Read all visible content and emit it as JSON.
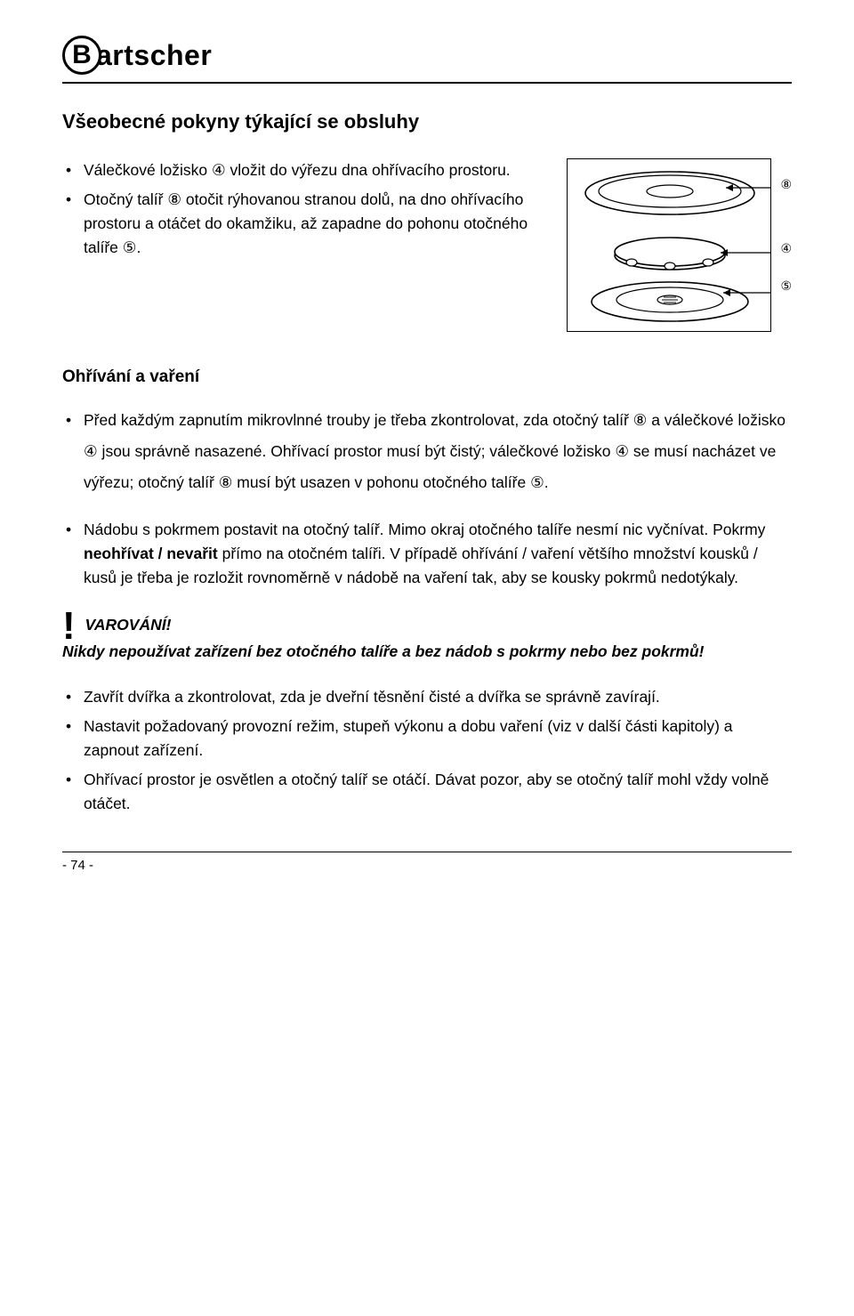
{
  "logo": {
    "b": "B",
    "rest": "artscher"
  },
  "heading": "Všeobecné pokyny týkající se obsluhy",
  "topList": [
    "Válečkové ložisko ④ vložit do výřezu dna ohřívacího prostoru.",
    "Otočný talíř ⑧ otočit rýhovanou stranou dolů, na dno ohřívacího prostoru a otáčet do okamžiku, až zapadne do pohonu otočného talíře ⑤."
  ],
  "figure": {
    "labels": [
      "⑧",
      "④",
      "⑤"
    ],
    "label_margins": [
      12,
      66,
      16
    ],
    "box_border_color": "#000000",
    "ellipse_stroke": "#000000",
    "ellipse_fill": "#ffffff"
  },
  "subHeading": "Ohřívání a vaření",
  "midList": [
    "Před každým zapnutím mikrovlnné trouby je třeba zkontrolovat, zda otočný talíř ⑧ a válečkové ložisko ④ jsou správně nasazené. Ohřívací prostor musí být čistý; válečkové ložisko ④ se musí nacházet ve výřezu; otočný talíř ⑧ musí být usazen v pohonu otočného talíře ⑤.",
    "Nádobu s pokrmem postavit na otočný talíř. Mimo okraj otočného talíře nesmí nic vyčnívat. Pokrmy <b>neohřívat / nevařit</b> přímo na otočném talíři. V případě ohřívání / vaření většího množství kousků / kusů je třeba je rozložit rovnoměrně v nádobě na vaření tak, aby se kousky pokrmů nedotýkaly."
  ],
  "warning": {
    "title": "VAROVÁNÍ!",
    "body": "Nikdy nepoužívat zařízení bez otočného talíře a bez nádob s pokrmy nebo bez pokrmů!"
  },
  "bottomList": [
    "Zavřít dvířka a zkontrolovat, zda je dveřní těsnění čisté a dvířka se správně zavírají.",
    "Nastavit požadovaný provozní režim, stupeň výkonu a dobu vaření (viz v další části kapitoly) a zapnout zařízení.",
    "Ohřívací prostor je osvětlen a otočný talíř se otáčí. Dávat pozor, aby se otočný talíř mohl vždy volně otáčet."
  ],
  "pageFooter": "- 74 -",
  "colors": {
    "text": "#000000",
    "background": "#ffffff",
    "rule": "#000000"
  }
}
